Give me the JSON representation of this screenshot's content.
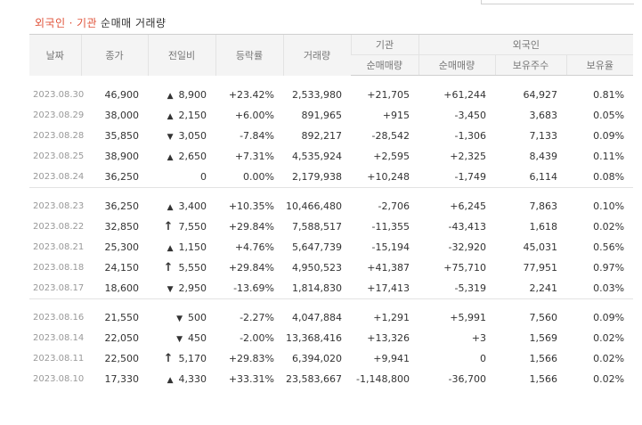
{
  "title": {
    "foreign": "외국인",
    "sep": "·",
    "inst": "기관",
    "rest": "순매매 거래량"
  },
  "headers": {
    "date": "날짜",
    "close": "종가",
    "change": "전일비",
    "rate": "등락률",
    "volume": "거래량",
    "inst_group": "기관",
    "inst_net": "순매매량",
    "foreign_group": "외국인",
    "foreign_net": "순매매량",
    "holdings": "보유주수",
    "ratio": "보유율"
  },
  "groups": [
    [
      {
        "date": "2023.08.30",
        "close": "46,900",
        "dir": "up",
        "change": "8,900",
        "rate": "+23.42%",
        "volume": "2,533,980",
        "inst": "+21,705",
        "foreign": "+61,244",
        "holdings": "64,927",
        "ratio": "0.81%"
      },
      {
        "date": "2023.08.29",
        "close": "38,000",
        "dir": "up",
        "change": "2,150",
        "rate": "+6.00%",
        "volume": "891,965",
        "inst": "+915",
        "foreign": "-3,450",
        "holdings": "3,683",
        "ratio": "0.05%"
      },
      {
        "date": "2023.08.28",
        "close": "35,850",
        "dir": "down",
        "change": "3,050",
        "rate": "-7.84%",
        "volume": "892,217",
        "inst": "-28,542",
        "foreign": "-1,306",
        "holdings": "7,133",
        "ratio": "0.09%"
      },
      {
        "date": "2023.08.25",
        "close": "38,900",
        "dir": "up",
        "change": "2,650",
        "rate": "+7.31%",
        "volume": "4,535,924",
        "inst": "+2,595",
        "foreign": "+2,325",
        "holdings": "8,439",
        "ratio": "0.11%"
      },
      {
        "date": "2023.08.24",
        "close": "36,250",
        "dir": "none",
        "change": "0",
        "rate": "0.00%",
        "volume": "2,179,938",
        "inst": "+10,248",
        "foreign": "-1,749",
        "holdings": "6,114",
        "ratio": "0.08%"
      }
    ],
    [
      {
        "date": "2023.08.23",
        "close": "36,250",
        "dir": "up",
        "change": "3,400",
        "rate": "+10.35%",
        "volume": "10,466,480",
        "inst": "-2,706",
        "foreign": "+6,245",
        "holdings": "7,863",
        "ratio": "0.10%"
      },
      {
        "date": "2023.08.22",
        "close": "32,850",
        "dir": "limit",
        "change": "7,550",
        "rate": "+29.84%",
        "volume": "7,588,517",
        "inst": "-11,355",
        "foreign": "-43,413",
        "holdings": "1,618",
        "ratio": "0.02%"
      },
      {
        "date": "2023.08.21",
        "close": "25,300",
        "dir": "up",
        "change": "1,150",
        "rate": "+4.76%",
        "volume": "5,647,739",
        "inst": "-15,194",
        "foreign": "-32,920",
        "holdings": "45,031",
        "ratio": "0.56%"
      },
      {
        "date": "2023.08.18",
        "close": "24,150",
        "dir": "limit",
        "change": "5,550",
        "rate": "+29.84%",
        "volume": "4,950,523",
        "inst": "+41,387",
        "foreign": "+75,710",
        "holdings": "77,951",
        "ratio": "0.97%"
      },
      {
        "date": "2023.08.17",
        "close": "18,600",
        "dir": "down",
        "change": "2,950",
        "rate": "-13.69%",
        "volume": "1,814,830",
        "inst": "+17,413",
        "foreign": "-5,319",
        "holdings": "2,241",
        "ratio": "0.03%"
      }
    ],
    [
      {
        "date": "2023.08.16",
        "close": "21,550",
        "dir": "down",
        "change": "500",
        "rate": "-2.27%",
        "volume": "4,047,884",
        "inst": "+1,291",
        "foreign": "+5,991",
        "holdings": "7,560",
        "ratio": "0.09%"
      },
      {
        "date": "2023.08.14",
        "close": "22,050",
        "dir": "down",
        "change": "450",
        "rate": "-2.00%",
        "volume": "13,368,416",
        "inst": "+13,326",
        "foreign": "+3",
        "holdings": "1,569",
        "ratio": "0.02%"
      },
      {
        "date": "2023.08.11",
        "close": "22,500",
        "dir": "limit",
        "change": "5,170",
        "rate": "+29.83%",
        "volume": "6,394,020",
        "inst": "+9,941",
        "foreign": "0",
        "holdings": "1,566",
        "ratio": "0.02%"
      },
      {
        "date": "2023.08.10",
        "close": "17,330",
        "dir": "up",
        "change": "4,330",
        "rate": "+33.31%",
        "volume": "23,583,667",
        "inst": "-1,148,800",
        "foreign": "-36,700",
        "holdings": "1,566",
        "ratio": "0.02%"
      }
    ]
  ],
  "colors": {
    "up": "#e12f2f",
    "down": "#2d6cd4",
    "title_accent": "#e0533a"
  },
  "icons": {
    "up": "triangle-up-icon",
    "down": "triangle-down-icon",
    "limit": "limit-up-arrow-icon"
  }
}
